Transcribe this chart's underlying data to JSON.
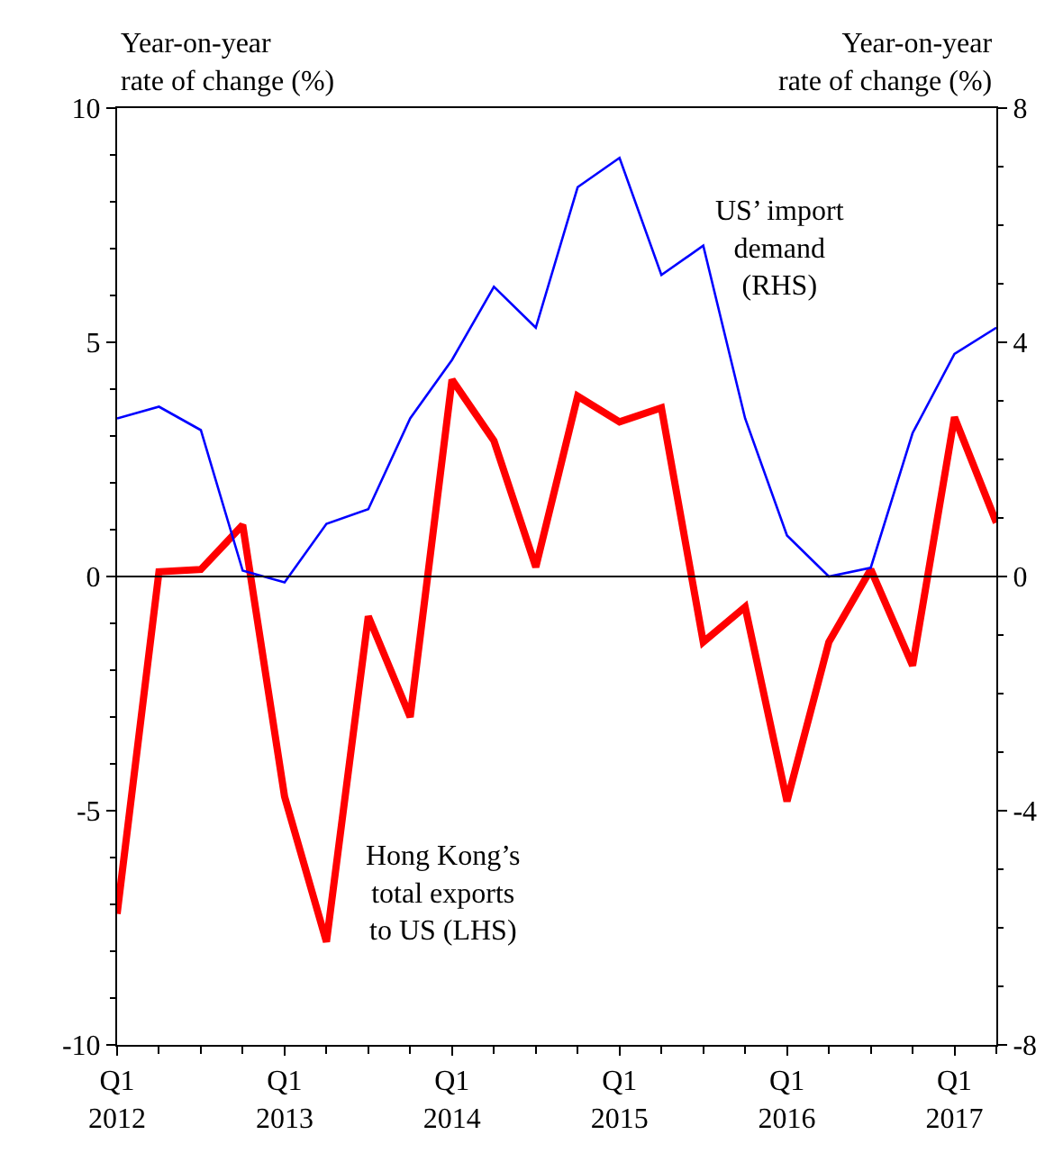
{
  "chart_data": {
    "type": "line",
    "ylabel": "Year-on-year\nrate of change (%)",
    "y2label": "Year-on-year\nrate of change (%)",
    "categories": [
      "Q1\n2012",
      null,
      null,
      null,
      "Q1\n2013",
      null,
      null,
      null,
      "Q1\n2014",
      null,
      null,
      null,
      "Q1\n2015",
      null,
      null,
      null,
      "Q1\n2016",
      null,
      null,
      null,
      "Q1\n2017",
      null
    ],
    "series": [
      {
        "name": "Hong Kong’s\ntotal exports\nto US (LHS)",
        "color": "#ff0000",
        "axis": "y",
        "values": [
          -7.2,
          0.1,
          0.15,
          1.1,
          -4.7,
          -7.8,
          -0.85,
          -3.0,
          4.2,
          2.9,
          0.2,
          3.85,
          3.3,
          3.6,
          -1.4,
          -0.65,
          -4.8,
          -1.4,
          0.15,
          -1.9,
          3.4,
          1.15
        ]
      },
      {
        "name": "US’ import\ndemand\n(RHS)",
        "color": "#0000ff",
        "axis": "y2",
        "values": [
          2.7,
          2.9,
          2.5,
          0.1,
          -0.1,
          0.9,
          1.15,
          2.7,
          3.7,
          4.95,
          4.25,
          6.65,
          7.15,
          5.15,
          5.65,
          2.7,
          0.7,
          0.0,
          0.15,
          2.45,
          3.8,
          4.25
        ]
      }
    ],
    "ylim": [
      -10,
      10
    ],
    "yticks": [
      -10,
      -5,
      0,
      5,
      10
    ],
    "y2lim": [
      -8,
      8
    ],
    "y2ticks": [
      -8,
      -4,
      0,
      4,
      8
    ],
    "ref_lines": [
      {
        "axis": "y",
        "value": 0,
        "color": "#000000"
      }
    ],
    "legend": false,
    "marker": "none",
    "line_style": "solid"
  }
}
